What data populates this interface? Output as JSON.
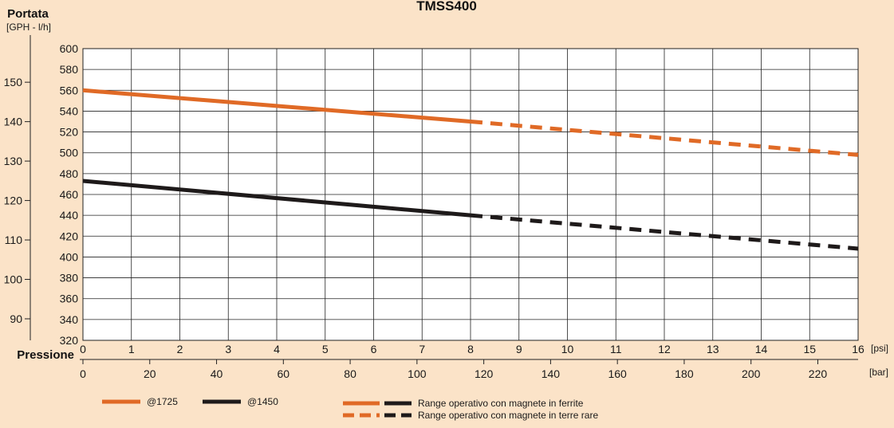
{
  "chart_data": {
    "type": "line",
    "title": "TMSS400",
    "ylabel": "Portata",
    "ylabel_units": "[GPH - l/h]",
    "xlabel": "Pressione",
    "x_units_top": "[psi]",
    "x_units_bottom": "[bar]",
    "x_psi_ticks": [
      "0",
      "1",
      "2",
      "3",
      "4",
      "5",
      "6",
      "7",
      "8",
      "9",
      "10",
      "11",
      "12",
      "13",
      "14",
      "15",
      "16"
    ],
    "x_bar_ticks": [
      "0",
      "20",
      "40",
      "60",
      "80",
      "100",
      "120",
      "140",
      "160",
      "180",
      "200",
      "220"
    ],
    "y_lh_ticks": [
      "320",
      "340",
      "360",
      "380",
      "400",
      "420",
      "440",
      "460",
      "480",
      "500",
      "520",
      "540",
      "560",
      "580",
      "600"
    ],
    "y_gph_ticks": [
      "90",
      "100",
      "110",
      "120",
      "130",
      "140",
      "150"
    ],
    "xlim": [
      0,
      16
    ],
    "ylim": [
      320,
      600
    ],
    "grid": true,
    "series": [
      {
        "name": "@1725",
        "color": "#e06a26",
        "points": [
          [
            0,
            560
          ],
          [
            8,
            530
          ]
        ],
        "dashed_points": [
          [
            8,
            530
          ],
          [
            16,
            498
          ]
        ]
      },
      {
        "name": "@1450",
        "color": "#1e1a1a",
        "points": [
          [
            0,
            473
          ],
          [
            8,
            440
          ]
        ],
        "dashed_points": [
          [
            8,
            440
          ],
          [
            16,
            408
          ]
        ]
      }
    ],
    "legend": {
      "placement": "bottom",
      "series_labels": [
        "@1725",
        "@1450"
      ],
      "solid_label": "Range operativo con magnete in ferrite",
      "dashed_label": "Range operativo con magnete in terre rare"
    }
  }
}
